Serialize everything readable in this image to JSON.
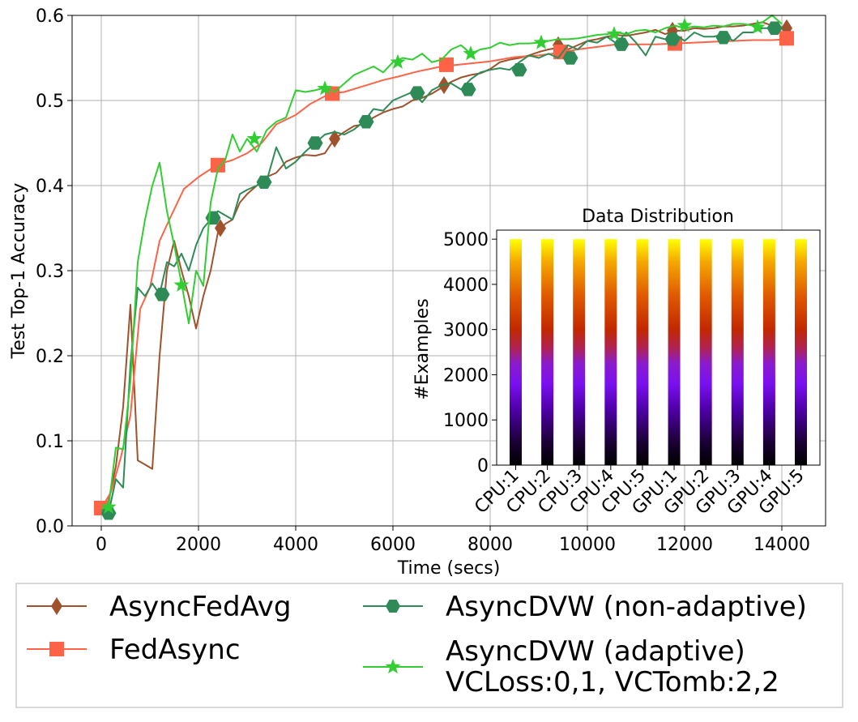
{
  "chart_data": [
    {
      "type": "line",
      "xlabel": "Time (secs)",
      "ylabel": "Test Top-1 Accuracy",
      "xlim": [
        -600,
        14900
      ],
      "ylim": [
        0.0,
        0.6
      ],
      "xticks": [
        "0",
        "2000",
        "4000",
        "6000",
        "8000",
        "10000",
        "12000",
        "14000"
      ],
      "xtick_values": [
        0,
        2000,
        4000,
        6000,
        8000,
        10000,
        12000,
        14000
      ],
      "yticks": [
        "0.0",
        "0.1",
        "0.2",
        "0.3",
        "0.4",
        "0.5",
        "0.6"
      ],
      "ytick_values": [
        0.0,
        0.1,
        0.2,
        0.3,
        0.4,
        0.5,
        0.6
      ],
      "grid": true,
      "series": [
        {
          "name": "AsyncFedAvg",
          "color": "#a0522d",
          "marker": "diamond",
          "x": [
            0,
            150,
            300,
            450,
            600,
            750,
            900,
            1050,
            1200,
            1350,
            1500,
            1650,
            1800,
            1950,
            2100,
            2250,
            2400,
            2550,
            2700,
            2850,
            3000,
            3200,
            3400,
            3600,
            3800,
            4000,
            4200,
            4400,
            4600,
            4800,
            5000,
            5200,
            5400,
            5600,
            5800,
            6000,
            6200,
            6400,
            6600,
            6800,
            7000,
            7200,
            7400,
            7600,
            7800,
            8000,
            8200,
            8400,
            8600,
            8800,
            9000,
            9200,
            9400,
            9600,
            9800,
            10000,
            10200,
            10400,
            10600,
            10800,
            11000,
            11200,
            11400,
            11600,
            11800,
            12000,
            12200,
            12400,
            12600,
            12800,
            13000,
            13200,
            13400,
            13600,
            13800,
            14000,
            14100
          ],
          "y": [
            0.02,
            0.03,
            0.07,
            0.14,
            0.26,
            0.077,
            0.072,
            0.067,
            0.2,
            0.3,
            0.335,
            0.3,
            0.27,
            0.232,
            0.27,
            0.3,
            0.345,
            0.355,
            0.36,
            0.38,
            0.39,
            0.4,
            0.41,
            0.415,
            0.428,
            0.433,
            0.436,
            0.435,
            0.438,
            0.455,
            0.463,
            0.47,
            0.472,
            0.48,
            0.486,
            0.49,
            0.493,
            0.5,
            0.503,
            0.508,
            0.515,
            0.522,
            0.527,
            0.53,
            0.532,
            0.537,
            0.545,
            0.548,
            0.55,
            0.553,
            0.557,
            0.56,
            0.562,
            0.56,
            0.565,
            0.57,
            0.572,
            0.575,
            0.577,
            0.576,
            0.578,
            0.58,
            0.583,
            0.578,
            0.582,
            0.582,
            0.585,
            0.584,
            0.585,
            0.587,
            0.587,
            0.588,
            0.59,
            0.592,
            0.588,
            0.586,
            0.585
          ],
          "marker_x": [
            2450,
            4800,
            7050,
            9400,
            11750,
            14100
          ],
          "marker_y": [
            0.35,
            0.455,
            0.518,
            0.565,
            0.582,
            0.585
          ]
        },
        {
          "name": "FedAsync",
          "color": "#ff6347",
          "marker": "square",
          "x": [
            0,
            200,
            400,
            600,
            800,
            1000,
            1200,
            1400,
            1700,
            2000,
            2400,
            2700,
            3000,
            3300,
            3600,
            4000,
            4300,
            4700,
            5000,
            5400,
            5800,
            6100,
            6500,
            7000,
            7500,
            8000,
            8500,
            9000,
            9400,
            9800,
            10200,
            10600,
            11000,
            11400,
            11800,
            12200,
            12600,
            13000,
            13400,
            13800,
            14100
          ],
          "y": [
            0.02,
            0.04,
            0.08,
            0.13,
            0.255,
            0.28,
            0.335,
            0.36,
            0.396,
            0.41,
            0.425,
            0.43,
            0.438,
            0.45,
            0.472,
            0.483,
            0.496,
            0.508,
            0.51,
            0.517,
            0.524,
            0.528,
            0.534,
            0.54,
            0.543,
            0.546,
            0.551,
            0.553,
            0.556,
            0.56,
            0.563,
            0.566,
            0.566,
            0.566,
            0.567,
            0.568,
            0.569,
            0.57,
            0.571,
            0.571,
            0.572
          ],
          "marker_x": [
            0,
            2400,
            4750,
            7100,
            9450,
            11800,
            14100
          ],
          "marker_y": [
            0.021,
            0.424,
            0.508,
            0.542,
            0.557,
            0.567,
            0.573
          ]
        },
        {
          "name": "AsyncDVW (non-adaptive)",
          "color": "#2e8b57",
          "marker": "hexagon",
          "x": [
            0,
            150,
            300,
            450,
            600,
            750,
            900,
            1050,
            1200,
            1350,
            1500,
            1650,
            1800,
            1950,
            2100,
            2250,
            2400,
            2550,
            2700,
            2850,
            3000,
            3200,
            3400,
            3600,
            3800,
            4000,
            4200,
            4400,
            4600,
            4800,
            5000,
            5200,
            5400,
            5600,
            5800,
            6000,
            6200,
            6400,
            6600,
            6800,
            7000,
            7200,
            7400,
            7600,
            7800,
            8000,
            8200,
            8400,
            8600,
            8800,
            9000,
            9200,
            9400,
            9600,
            9800,
            10000,
            10200,
            10400,
            10600,
            10800,
            11000,
            11200,
            11400,
            11600,
            11800,
            12000,
            12200,
            12400,
            12600,
            12800,
            13000,
            13200,
            13400,
            13600,
            13800,
            14000
          ],
          "y": [
            0.02,
            0.015,
            0.055,
            0.045,
            0.19,
            0.28,
            0.27,
            0.285,
            0.272,
            0.31,
            0.305,
            0.32,
            0.3,
            0.33,
            0.35,
            0.36,
            0.37,
            0.365,
            0.36,
            0.39,
            0.395,
            0.4,
            0.405,
            0.445,
            0.42,
            0.428,
            0.44,
            0.45,
            0.46,
            0.463,
            0.46,
            0.466,
            0.475,
            0.49,
            0.488,
            0.5,
            0.505,
            0.51,
            0.498,
            0.512,
            0.518,
            0.52,
            0.513,
            0.525,
            0.533,
            0.536,
            0.538,
            0.536,
            0.545,
            0.553,
            0.55,
            0.555,
            0.55,
            0.565,
            0.56,
            0.57,
            0.568,
            0.575,
            0.567,
            0.58,
            0.568,
            0.553,
            0.575,
            0.572,
            0.578,
            0.57,
            0.58,
            0.575,
            0.575,
            0.578,
            0.57,
            0.58,
            0.58,
            0.585,
            0.585,
            0.585
          ],
          "marker_x": [
            150,
            1250,
            2300,
            3350,
            4400,
            5450,
            6500,
            7550,
            8600,
            9650,
            10700,
            11750,
            12800,
            13850
          ],
          "marker_y": [
            0.015,
            0.272,
            0.362,
            0.404,
            0.45,
            0.475,
            0.509,
            0.513,
            0.536,
            0.55,
            0.566,
            0.572,
            0.574,
            0.585
          ]
        },
        {
          "name": "AsyncDVW (adaptive)\nVCLoss:0,1, VCTomb:2,2",
          "color": "#32cd32",
          "marker": "star",
          "x": [
            0,
            150,
            300,
            450,
            600,
            750,
            900,
            1050,
            1200,
            1350,
            1500,
            1650,
            1800,
            1950,
            2100,
            2250,
            2400,
            2550,
            2700,
            2850,
            3000,
            3200,
            3400,
            3600,
            3800,
            4000,
            4200,
            4400,
            4600,
            4800,
            5000,
            5200,
            5400,
            5600,
            5800,
            6000,
            6200,
            6400,
            6600,
            6800,
            7000,
            7200,
            7400,
            7600,
            7800,
            8000,
            8200,
            8400,
            8600,
            8800,
            9000,
            9200,
            9400,
            9600,
            9800,
            10000,
            10200,
            10400,
            10600,
            10800,
            11000,
            11200,
            11400,
            11600,
            11800,
            12000,
            12200,
            12400,
            12600,
            12800,
            13000,
            13200,
            13400,
            13600,
            13800,
            14000
          ],
          "y": [
            0.02,
            0.022,
            0.092,
            0.09,
            0.17,
            0.31,
            0.36,
            0.4,
            0.427,
            0.37,
            0.33,
            0.285,
            0.238,
            0.3,
            0.282,
            0.38,
            0.42,
            0.43,
            0.46,
            0.44,
            0.455,
            0.44,
            0.465,
            0.475,
            0.48,
            0.512,
            0.51,
            0.512,
            0.515,
            0.51,
            0.52,
            0.53,
            0.535,
            0.54,
            0.533,
            0.545,
            0.55,
            0.548,
            0.555,
            0.545,
            0.548,
            0.56,
            0.565,
            0.555,
            0.56,
            0.562,
            0.568,
            0.565,
            0.567,
            0.567,
            0.568,
            0.57,
            0.572,
            0.572,
            0.573,
            0.575,
            0.577,
            0.578,
            0.58,
            0.578,
            0.582,
            0.583,
            0.58,
            0.585,
            0.588,
            0.585,
            0.587,
            0.586,
            0.588,
            0.587,
            0.59,
            0.59,
            0.588,
            0.592,
            0.6,
            0.59
          ],
          "marker_x": [
            150,
            1650,
            3150,
            4600,
            6100,
            7600,
            9050,
            10550,
            12000,
            13500
          ],
          "marker_y": [
            0.022,
            0.283,
            0.455,
            0.514,
            0.545,
            0.555,
            0.568,
            0.578,
            0.588,
            0.586
          ]
        }
      ],
      "legend": {
        "placement": "below",
        "entries": [
          "AsyncFedAvg",
          "FedAsync",
          "AsyncDVW (non-adaptive)",
          "AsyncDVW (adaptive)",
          "VCLoss:0,1, VCTomb:2,2"
        ]
      }
    },
    {
      "type": "bar",
      "title": "Data Distribution",
      "xlabel": "",
      "ylabel": "#Examples",
      "categories": [
        "CPU:1",
        "CPU:2",
        "CPU:3",
        "CPU:4",
        "CPU:5",
        "GPU:1",
        "GPU:2",
        "GPU:3",
        "GPU:4",
        "GPU:5"
      ],
      "values": [
        5000,
        5000,
        5000,
        5000,
        5000,
        5000,
        5000,
        5000,
        5000,
        5000
      ],
      "ylim": [
        0,
        5200
      ],
      "yticks": [
        "0",
        "1000",
        "2000",
        "3000",
        "4000",
        "5000"
      ],
      "ytick_values": [
        0,
        1000,
        2000,
        3000,
        4000,
        5000
      ],
      "colormap": "gnuplot",
      "grid": false
    }
  ]
}
